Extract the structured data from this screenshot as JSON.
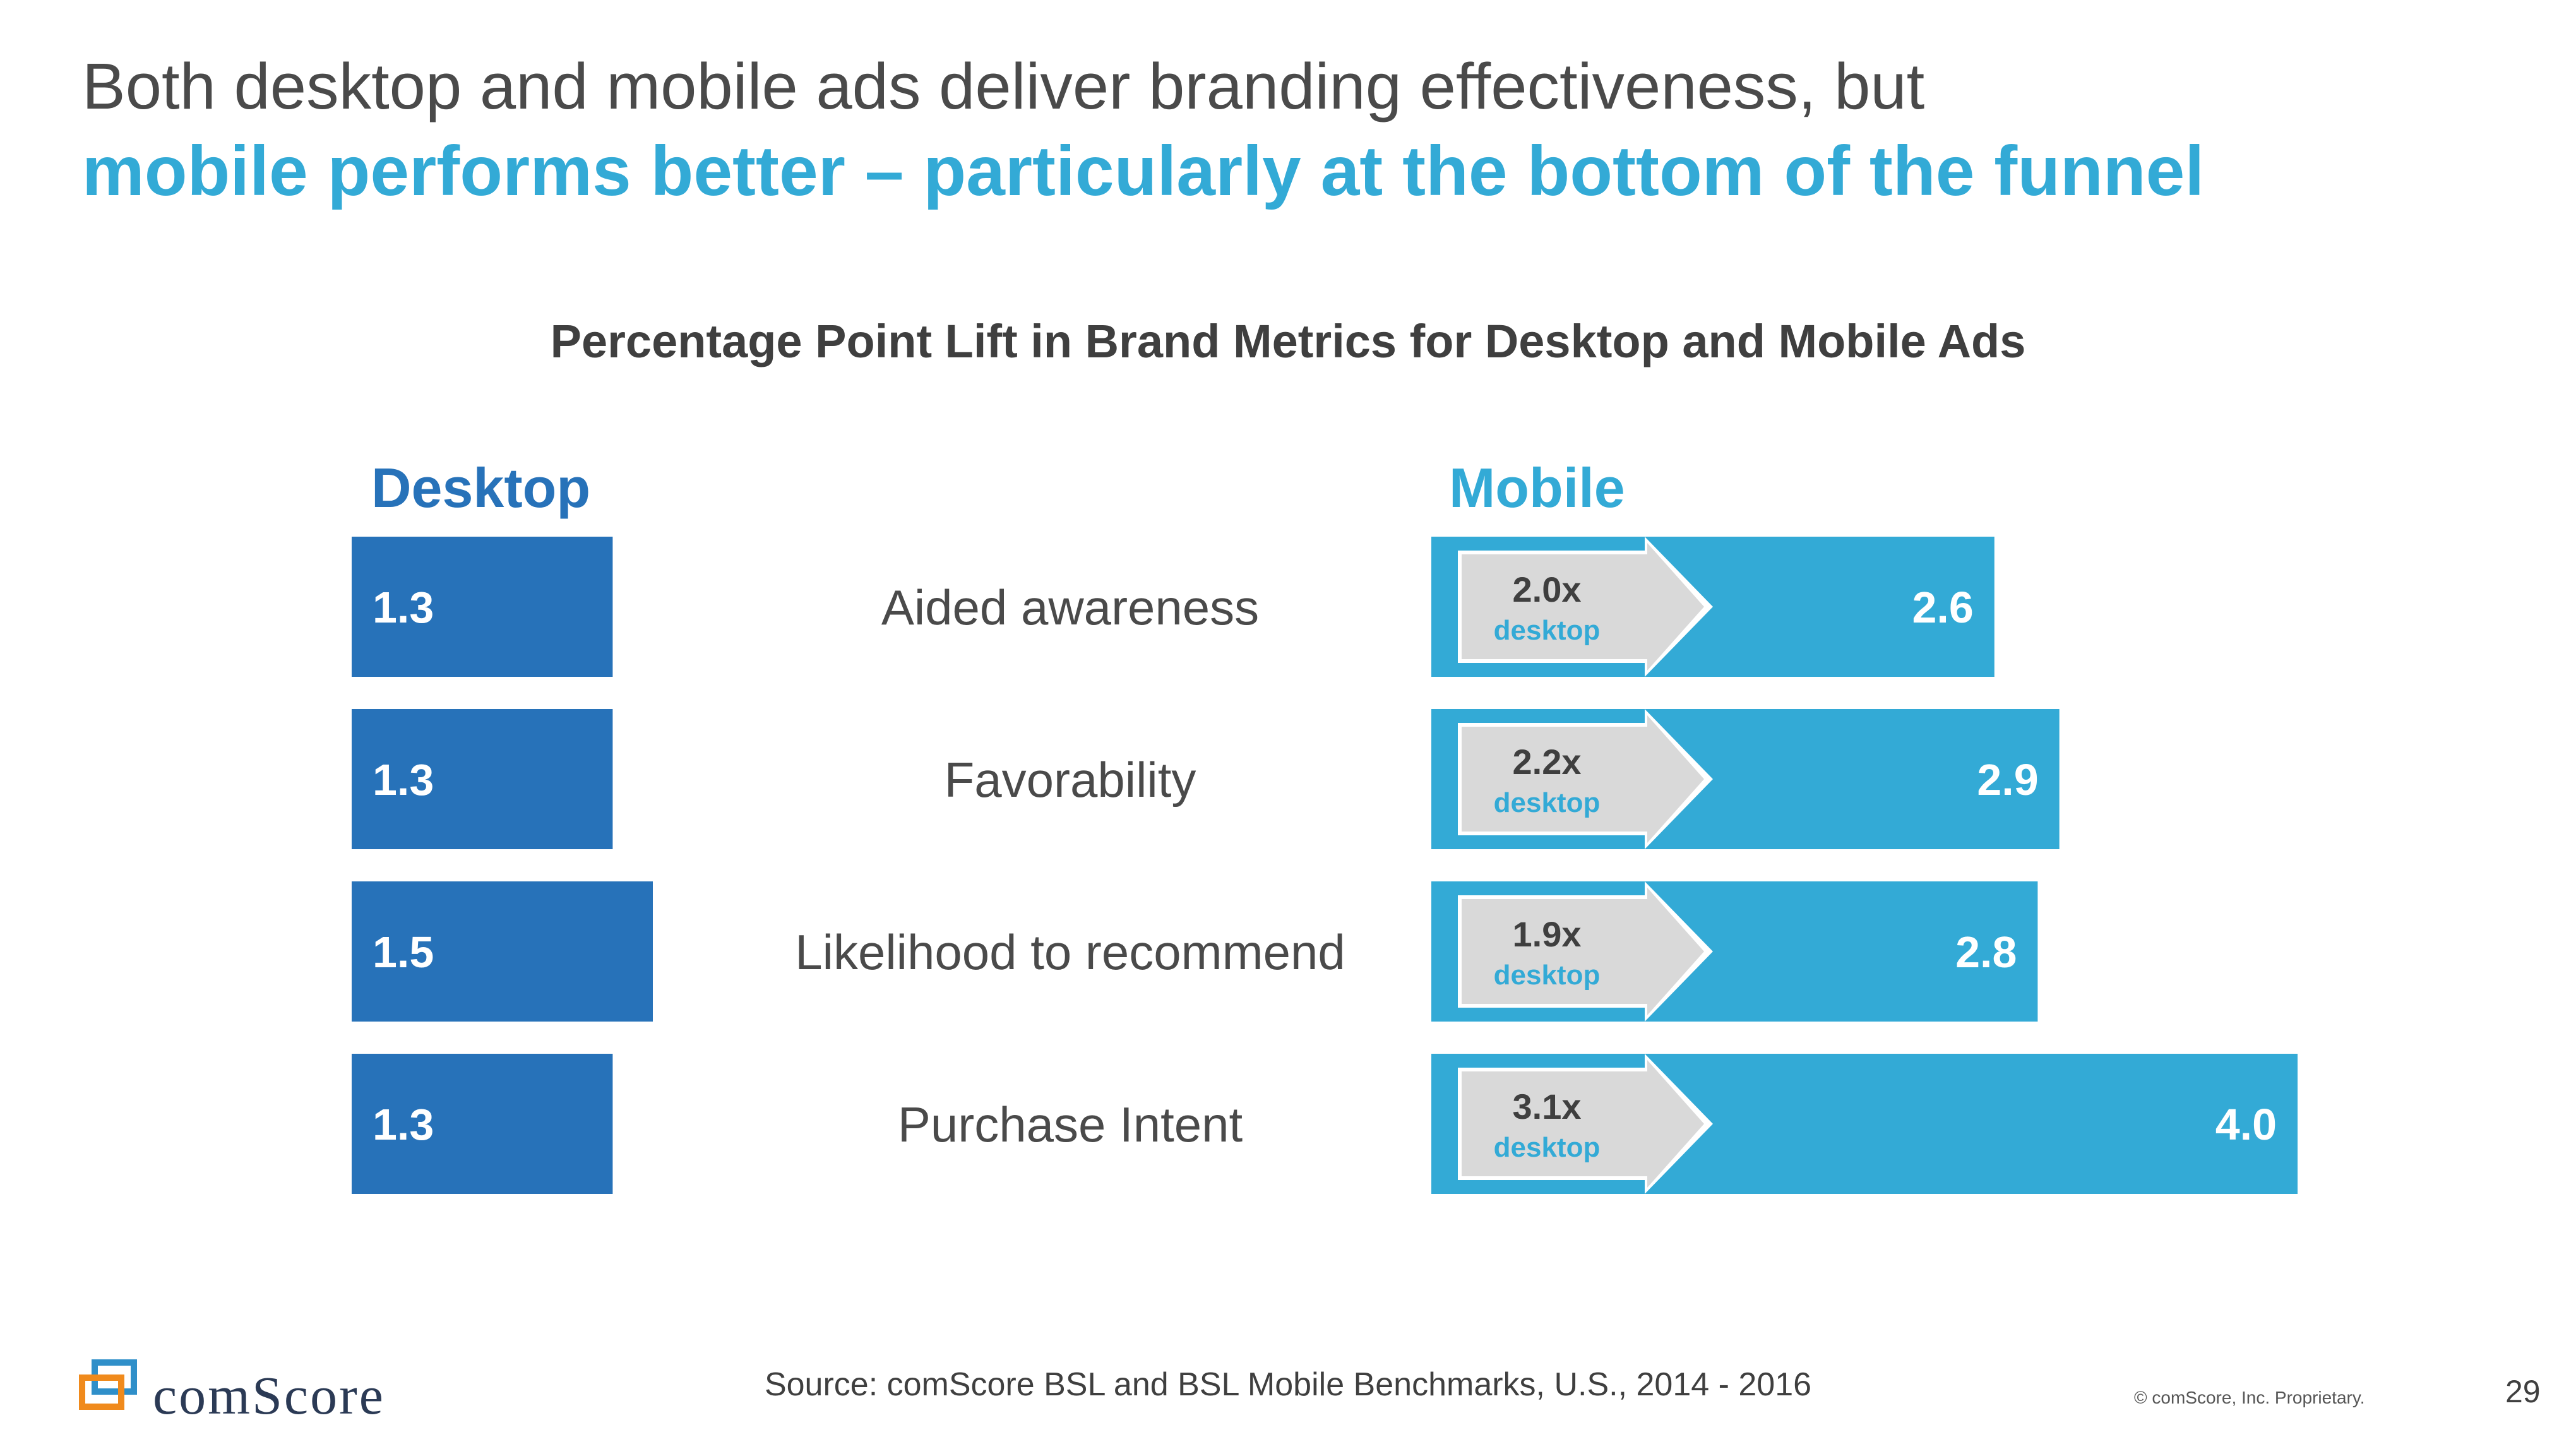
{
  "header": {
    "line1": "Both desktop and mobile ads deliver branding effectiveness, but",
    "line2": "mobile performs better – particularly at the bottom of the funnel"
  },
  "chart_data": {
    "type": "bar",
    "title": "Percentage Point Lift in Brand Metrics for Desktop and Mobile Ads",
    "categories": [
      "Aided awareness",
      "Favorability",
      "Likelihood to recommend",
      "Purchase Intent"
    ],
    "series": [
      {
        "name": "Desktop",
        "values": [
          1.3,
          1.3,
          1.5,
          1.3
        ],
        "labels": [
          "1.3",
          "1.3",
          "1.5",
          "1.3"
        ],
        "color": "#2772b9"
      },
      {
        "name": "Mobile",
        "values": [
          2.6,
          2.9,
          2.8,
          4.0
        ],
        "labels": [
          "2.6",
          "2.9",
          "2.8",
          "4.0"
        ],
        "color": "#33aad6"
      }
    ],
    "ratio_labels": [
      "2.0x",
      "2.2x",
      "1.9x",
      "3.1x"
    ],
    "ratio_sub": "desktop",
    "orientation": "horizontal",
    "grid": false,
    "xlim": [
      0,
      4.0
    ]
  },
  "footer": {
    "source": "Source: comScore BSL and BSL Mobile Benchmarks, U.S., 2014 - 2016",
    "copyright": "© comScore, Inc. Proprietary.",
    "page_number": "29",
    "logo_text": "comScore",
    "logo_icon": "comscore-logo-icon"
  },
  "colors": {
    "desktop": "#2772b9",
    "mobile": "#33aad6",
    "ratio_box": "#d9d9d9",
    "accent_title": "#33aad6"
  }
}
